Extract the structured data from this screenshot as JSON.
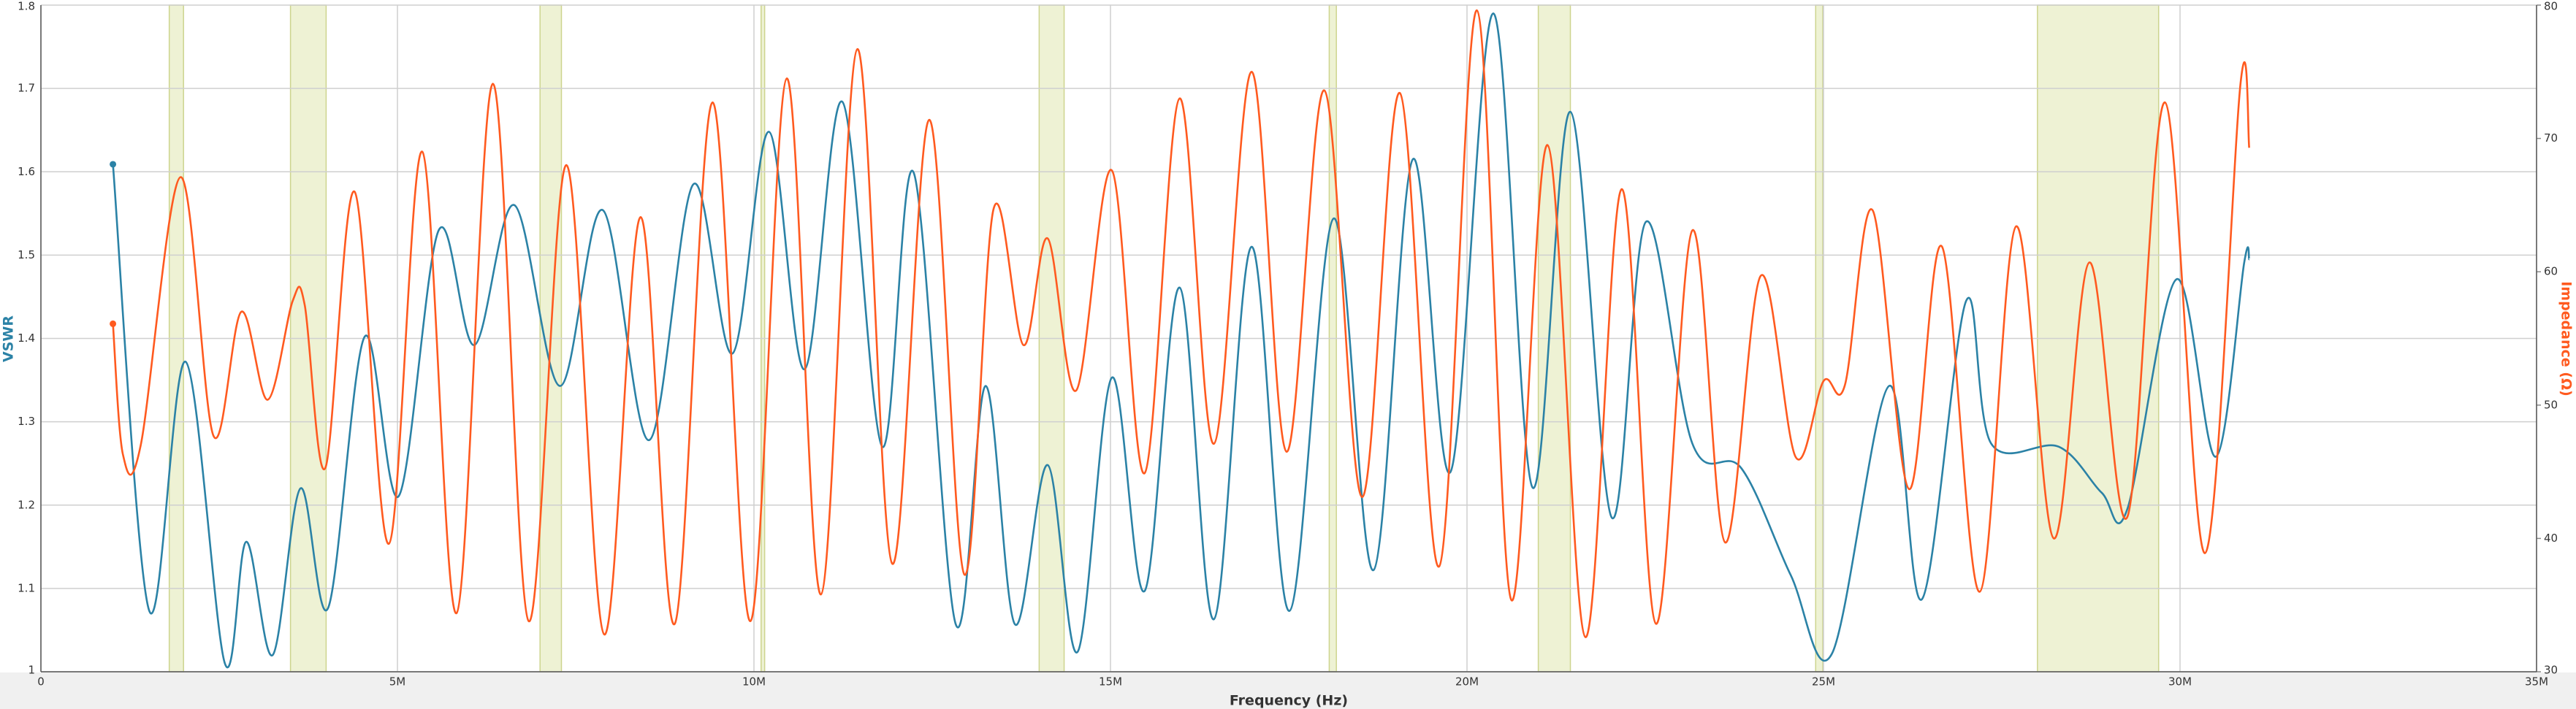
{
  "chart_data": {
    "type": "line",
    "xlabel": "Frequency (Hz)",
    "ylabel": "VSWR",
    "y2label": "Impedance (Ω)",
    "xlim": [
      0,
      35000000
    ],
    "xticks": [
      0,
      {
        "value": 5000000,
        "label": "5M"
      },
      {
        "value": 10000000,
        "label": "10M"
      },
      {
        "value": 15000000,
        "label": "15M"
      },
      {
        "value": 20000000,
        "label": "20M"
      },
      {
        "value": 25000000,
        "label": "25M"
      },
      {
        "value": 30000000,
        "label": "30M"
      },
      {
        "value": 35000000,
        "label": "35M"
      }
    ],
    "ylim": [
      1,
      1.8
    ],
    "yticks": [
      1,
      1.1,
      1.2,
      1.3,
      1.4,
      1.5,
      1.6,
      1.7,
      1.8
    ],
    "y2lim": [
      30,
      80
    ],
    "y2ticks": [
      30,
      40,
      50,
      60,
      70,
      80
    ],
    "grid": true,
    "highlight_bands": [
      [
        1800000,
        2000000
      ],
      [
        3500000,
        4000000
      ],
      [
        7000000,
        7300000
      ],
      [
        10100000,
        10150000
      ],
      [
        14000000,
        14350000
      ],
      [
        18068000,
        18168000
      ],
      [
        21000000,
        21450000
      ],
      [
        24890000,
        24990000
      ],
      [
        28000000,
        29700000
      ]
    ],
    "band_color": "#eef2d4",
    "series": [
      {
        "name": "VSWR",
        "color": "#2b82a6",
        "x": [
          1010000,
          1520000,
          2030000,
          2580000,
          2880000,
          3250000,
          3640000,
          4030000,
          4540000,
          5020000,
          5580000,
          6080000,
          6640000,
          7280000,
          7880000,
          8530000,
          9150000,
          9700000,
          10210000,
          10710000,
          11240000,
          11800000,
          12240000,
          12830000,
          13250000,
          13660000,
          14120000,
          14540000,
          15020000,
          15480000,
          15970000,
          16450000,
          16980000,
          17510000,
          18130000,
          18690000,
          19240000,
          19770000,
          20370000,
          20920000,
          21450000,
          22030000,
          22510000,
          23160000,
          23850000,
          24540000,
          25120000,
          25920000,
          26380000,
          27000000,
          27350000,
          28300000,
          28900000,
          29260000,
          29950000,
          30500000,
          30900000,
          30970000
        ],
        "values": [
          1.609,
          1.073,
          1.372,
          1.01,
          1.156,
          1.02,
          1.22,
          1.077,
          1.402,
          1.211,
          1.53,
          1.392,
          1.56,
          1.343,
          1.554,
          1.278,
          1.585,
          1.382,
          1.648,
          1.363,
          1.684,
          1.27,
          1.599,
          1.057,
          1.343,
          1.057,
          1.248,
          1.024,
          1.353,
          1.097,
          1.461,
          1.063,
          1.51,
          1.073,
          1.544,
          1.122,
          1.615,
          1.24,
          1.79,
          1.221,
          1.672,
          1.185,
          1.54,
          1.274,
          1.244,
          1.116,
          1.022,
          1.343,
          1.087,
          1.445,
          1.274,
          1.27,
          1.215,
          1.195,
          1.471,
          1.258,
          1.491,
          1.495
        ]
      },
      {
        "name": "Impedance",
        "color": "#ff5a1f",
        "axis": "y2",
        "x": [
          1010000,
          1150000,
          1400000,
          1960000,
          2420000,
          2810000,
          3180000,
          3530000,
          3700000,
          3990000,
          4400000,
          4880000,
          5350000,
          5830000,
          6340000,
          6840000,
          7370000,
          7900000,
          8410000,
          8890000,
          9420000,
          9950000,
          10460000,
          10940000,
          11450000,
          11940000,
          12460000,
          12950000,
          13360000,
          13780000,
          14120000,
          14520000,
          15020000,
          15480000,
          15970000,
          16450000,
          16980000,
          17470000,
          18000000,
          18530000,
          19060000,
          19610000,
          20140000,
          20620000,
          21130000,
          21660000,
          22170000,
          22650000,
          23160000,
          23620000,
          24120000,
          24610000,
          25000000,
          25300000,
          25690000,
          26200000,
          26660000,
          27190000,
          27700000,
          28230000,
          28730000,
          29260000,
          29790000,
          30350000,
          30850000,
          30970000
        ],
        "values": [
          56.1,
          46.3,
          47.0,
          67.1,
          47.7,
          57.0,
          50.4,
          57.8,
          57.5,
          45.3,
          66.0,
          39.6,
          69.0,
          34.4,
          74.1,
          33.8,
          68.0,
          32.8,
          64.1,
          33.6,
          72.7,
          33.8,
          74.5,
          35.8,
          76.7,
          38.1,
          71.4,
          37.3,
          64.7,
          54.5,
          62.5,
          51.1,
          67.6,
          44.9,
          73.0,
          47.1,
          75.0,
          46.5,
          73.6,
          43.1,
          73.4,
          37.9,
          79.6,
          35.4,
          69.5,
          32.6,
          66.2,
          33.6,
          63.1,
          39.7,
          59.7,
          46.1,
          51.8,
          51.5,
          64.6,
          43.7,
          61.9,
          36.0,
          63.4,
          40.0,
          60.7,
          41.6,
          72.7,
          38.9,
          74.2,
          69.3
        ]
      }
    ]
  }
}
